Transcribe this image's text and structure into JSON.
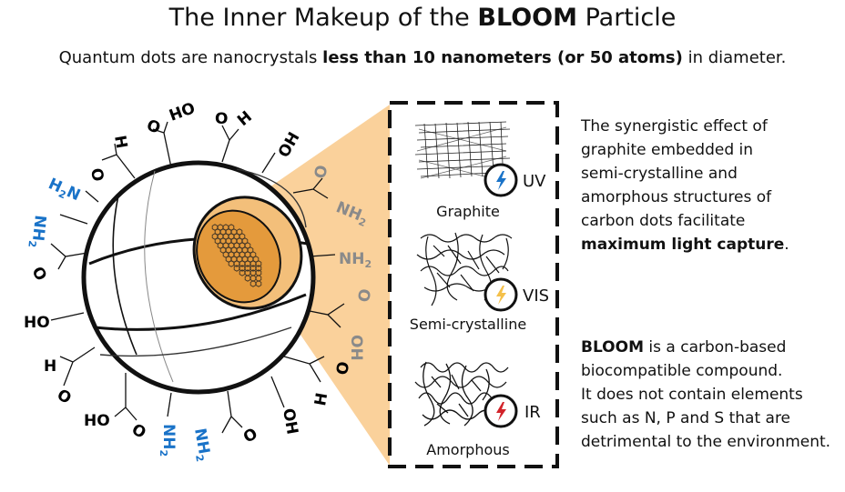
{
  "title": {
    "prefix": "The Inner Makeup of the ",
    "emph": "BLOOM",
    "suffix": " Particle"
  },
  "subtitle": {
    "prefix": "Quantum dots are nanocrystals ",
    "emph": "less than 10 nanometers (or 50 atoms)",
    "suffix": " in diameter."
  },
  "structures": [
    {
      "label": "Graphite",
      "band": "UV",
      "bolt_color": "#1a73c8"
    },
    {
      "label": "Semi-crystalline",
      "band": "VIS",
      "bolt_color": "#f4c04a"
    },
    {
      "label": "Amorphous",
      "band": "IR",
      "bolt_color": "#d2232a"
    }
  ],
  "text_right": {
    "p1_lines": [
      "The synergistic effect of",
      "graphite embedded in",
      "semi-crystalline and",
      "amorphous structures of",
      "carbon dots facilitate"
    ],
    "p1_bold": "maximum light capture",
    "p1_end": ".",
    "p2_bold": "BLOOM",
    "p2_first": " is a carbon-based",
    "p2_lines": [
      "biocompatible compound.",
      "It does not contain elements",
      "such as N, P and S that are",
      "detrimental to the environment."
    ]
  },
  "groups": {
    "h": "H",
    "o": "O",
    "oh": "OH",
    "ho": "HO",
    "nh2": "NH2",
    "h2n": "H2N"
  },
  "colors": {
    "accent": "#1a73c8",
    "faded": "#8a8a8a",
    "wedge": "#f9c98a",
    "core": "#e49a3c"
  }
}
